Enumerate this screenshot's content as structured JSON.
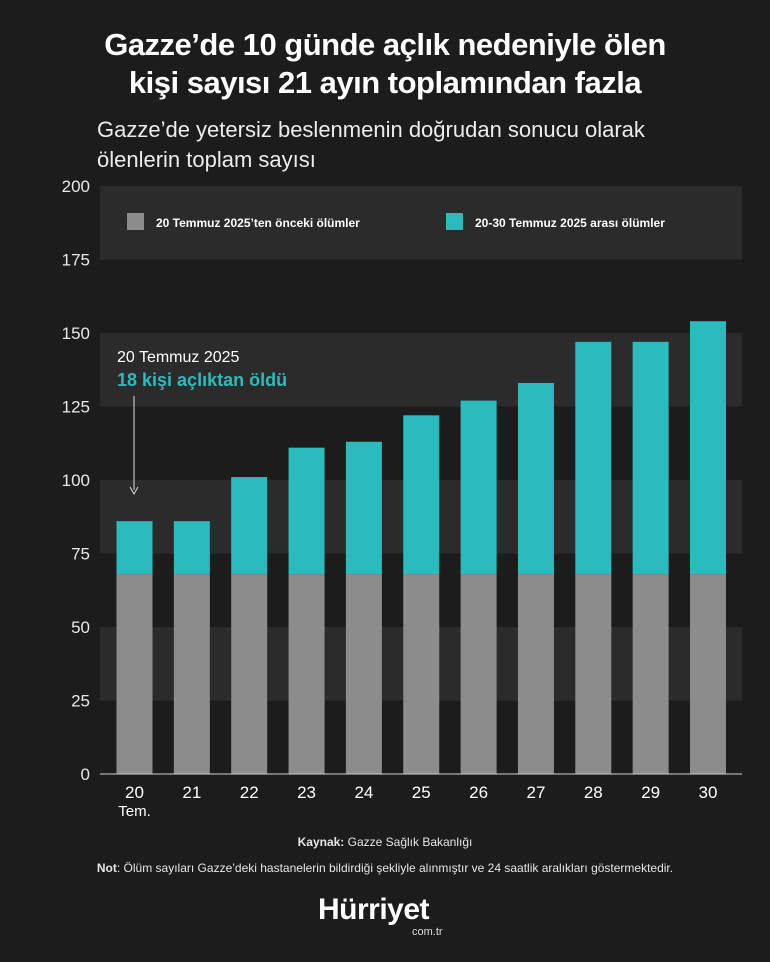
{
  "title_line1": "Gazze’de 10 günde açlık nedeniyle ölen",
  "title_line2": "kişi sayısı 21 ayın toplamından fazla",
  "subtitle_line1": "Gazze’de yetersiz beslenmenin doğrudan sonucu olarak",
  "subtitle_line2": "ölenlerin toplam sayısı",
  "annotation": {
    "date": "20 Temmuz 2025",
    "text": "18 kişi açlıktan öldü"
  },
  "footer": {
    "source_label": "Kaynak:",
    "source_text": " Gazze Sağlık Bakanlığı",
    "note_label": "Not",
    "note_text": ": Ölüm sayıları Gazze’deki hastanelerin bildirdiği şekliyle alınmıştır ve 24 saatlik aralıkları göstermektedir."
  },
  "logo": {
    "name": "Hürriyet",
    "domain": "com.tr"
  },
  "colors": {
    "before": "#8c8c8c",
    "after": "#2bbbbd",
    "accent_text": "#2bbbbd",
    "band": "#2b2b2b"
  },
  "chart_data": {
    "type": "bar",
    "stacked": true,
    "categories": [
      "20",
      "21",
      "22",
      "23",
      "24",
      "25",
      "26",
      "27",
      "28",
      "29",
      "30"
    ],
    "first_category_sub": "Tem.",
    "series": [
      {
        "name": "20 Temmuz 2025’ten önceki ölümler",
        "values": [
          68,
          68,
          68,
          68,
          68,
          68,
          68,
          68,
          68,
          68,
          68
        ]
      },
      {
        "name": "20-30 Temmuz 2025 arası ölümler",
        "values": [
          18,
          18,
          33,
          43,
          45,
          54,
          59,
          65,
          79,
          79,
          86
        ]
      }
    ],
    "ylim": [
      0,
      200
    ],
    "yticks": [
      "0",
      "25",
      "50",
      "75",
      "100",
      "125",
      "150",
      "175",
      "200"
    ],
    "legend": "top",
    "grid": "alternating bands"
  }
}
